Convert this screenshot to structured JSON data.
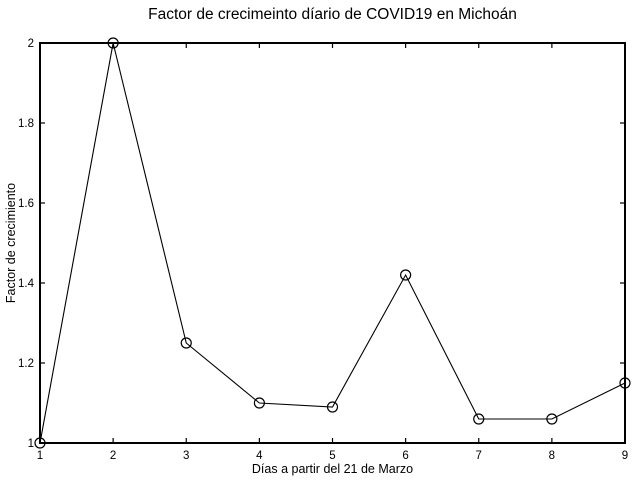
{
  "figure": {
    "background": "#ffffff"
  },
  "chart_data": {
    "type": "line",
    "title": "Factor de crecimeinto díario de COVID19 en Michoán",
    "xlabel": "Días a partir del 21 de Marzo",
    "ylabel": "Factor de crecimiento",
    "x": [
      1,
      2,
      3,
      4,
      5,
      6,
      7,
      8,
      9
    ],
    "y": [
      1.0,
      2.0,
      1.25,
      1.1,
      1.09,
      1.42,
      1.06,
      1.06,
      1.15
    ],
    "xlim": [
      1,
      9
    ],
    "ylim": [
      1,
      2
    ],
    "xticks": [
      1,
      2,
      3,
      4,
      5,
      6,
      7,
      8,
      9
    ],
    "xtick_labels": [
      "1",
      "2",
      "3",
      "4",
      "5",
      "6",
      "7",
      "8",
      "9"
    ],
    "yticks": [
      1,
      1.2,
      1.4,
      1.6,
      1.8,
      2
    ],
    "ytick_labels": [
      "1",
      "1.2",
      "1.4",
      "1.6",
      "1.8",
      "2"
    ],
    "marker": "open-circle",
    "line_color": "#000000",
    "axis_color": "#000000",
    "tick_label_color": "#000000",
    "background": "#ffffff",
    "grid": false,
    "legend": false
  }
}
